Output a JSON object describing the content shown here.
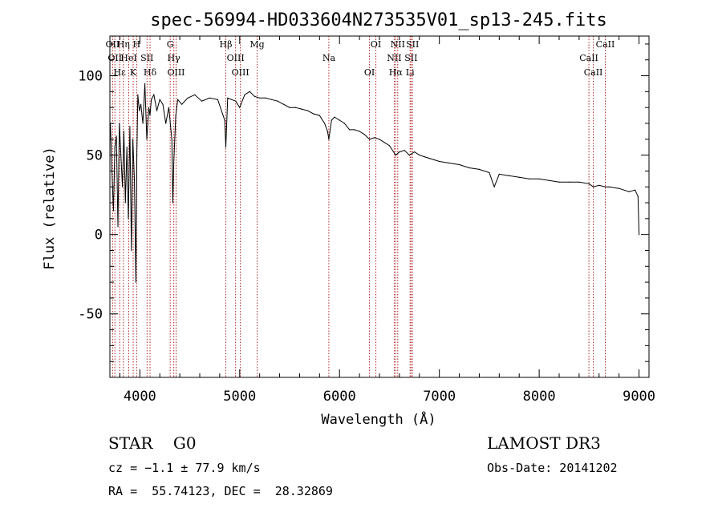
{
  "chart_data": {
    "type": "line",
    "title": "spec-56994-HD033604N273535V01_sp13-245.fits",
    "xlabel": "Wavelength (Å)",
    "ylabel": "Flux (relative)",
    "xlim": [
      3700,
      9100
    ],
    "ylim": [
      -90,
      125
    ],
    "grid": false,
    "legend": "none",
    "x_ticks": [
      {
        "value": 4000,
        "label": "4000"
      },
      {
        "value": 5000,
        "label": "5000"
      },
      {
        "value": 6000,
        "label": "6000"
      },
      {
        "value": 7000,
        "label": "7000"
      },
      {
        "value": 8000,
        "label": "8000"
      },
      {
        "value": 9000,
        "label": "9000"
      }
    ],
    "y_ticks": [
      {
        "value": 100,
        "label": "100"
      },
      {
        "value": 50,
        "label": "50"
      },
      {
        "value": 0,
        "label": "0"
      },
      {
        "value": -50,
        "label": "-50"
      }
    ],
    "series": [
      {
        "color": "#000000",
        "x": [
          3705,
          3720,
          3735,
          3750,
          3765,
          3780,
          3795,
          3810,
          3825,
          3840,
          3855,
          3870,
          3885,
          3900,
          3915,
          3930,
          3945,
          3960,
          3970,
          3980,
          3995,
          4010,
          4030,
          4050,
          4070,
          4090,
          4102,
          4115,
          4140,
          4170,
          4200,
          4230,
          4260,
          4290,
          4320,
          4330,
          4340,
          4360,
          4380,
          4420,
          4480,
          4550,
          4620,
          4700,
          4780,
          4850,
          4861,
          4880,
          4920,
          4960,
          5000,
          5050,
          5100,
          5150,
          5200,
          5260,
          5320,
          5380,
          5440,
          5500,
          5560,
          5620,
          5680,
          5740,
          5800,
          5850,
          5880,
          5893,
          5920,
          5950,
          6000,
          6050,
          6100,
          6150,
          6200,
          6250,
          6300,
          6350,
          6400,
          6450,
          6500,
          6563,
          6600,
          6650,
          6700,
          6750,
          6800,
          6850,
          6900,
          6950,
          7000,
          7100,
          7200,
          7300,
          7400,
          7500,
          7550,
          7600,
          7700,
          7800,
          7900,
          8000,
          8100,
          8200,
          8300,
          8400,
          8500,
          8542,
          8600,
          8662,
          8700,
          8800,
          8900,
          8960,
          8990,
          9000
        ],
        "values": [
          70,
          40,
          15,
          55,
          62,
          5,
          70,
          50,
          30,
          65,
          20,
          55,
          10,
          68,
          -10,
          60,
          35,
          -30,
          50,
          88,
          78,
          82,
          70,
          95,
          60,
          80,
          75,
          85,
          88,
          78,
          85,
          82,
          70,
          80,
          60,
          20,
          45,
          75,
          85,
          82,
          86,
          88,
          84,
          86,
          85,
          72,
          55,
          86,
          85,
          84,
          80,
          88,
          90,
          87,
          86,
          86,
          85,
          84,
          82,
          80,
          80,
          79,
          78,
          76,
          75,
          70,
          65,
          60,
          72,
          74,
          72,
          70,
          66,
          66,
          65,
          63,
          60,
          61,
          60,
          58,
          56,
          50,
          52,
          53,
          50,
          52,
          50,
          49,
          48,
          47,
          46,
          45,
          44,
          42,
          41,
          39,
          30,
          38,
          37,
          36,
          35,
          35,
          34,
          33,
          33,
          33,
          32,
          30,
          31,
          30,
          30,
          29,
          27,
          28,
          24,
          0
        ]
      }
    ],
    "line_markers": [
      {
        "wl": 3727,
        "label": "OII"
      },
      {
        "wl": 3750,
        "label": "OII"
      },
      {
        "wl": 3798,
        "label": "Hε"
      },
      {
        "wl": 3835,
        "label": "Hη"
      },
      {
        "wl": 3889,
        "label": "HeI"
      },
      {
        "wl": 3933,
        "label": "K"
      },
      {
        "wl": 3968,
        "label": "H"
      },
      {
        "wl": 4072,
        "label": "SII"
      },
      {
        "wl": 4102,
        "label": "Hδ"
      },
      {
        "wl": 4304,
        "label": "G"
      },
      {
        "wl": 4340,
        "label": "Hγ"
      },
      {
        "wl": 4363,
        "label": "OIII"
      },
      {
        "wl": 4861,
        "label": "Hβ"
      },
      {
        "wl": 4959,
        "label": "OIII"
      },
      {
        "wl": 5007,
        "label": "OIII"
      },
      {
        "wl": 5175,
        "label": "Mg"
      },
      {
        "wl": 5893,
        "label": "Na"
      },
      {
        "wl": 6300,
        "label": "OI"
      },
      {
        "wl": 6364,
        "label": "OI"
      },
      {
        "wl": 6548,
        "label": "NII"
      },
      {
        "wl": 6563,
        "label": "Hα"
      },
      {
        "wl": 6583,
        "label": "NII"
      },
      {
        "wl": 6716,
        "label": "SII"
      },
      {
        "wl": 6707,
        "label": "Li"
      },
      {
        "wl": 6731,
        "label": "SII"
      },
      {
        "wl": 8498,
        "label": "CaII"
      },
      {
        "wl": 8542,
        "label": "CaII"
      },
      {
        "wl": 8662,
        "label": "CaII"
      }
    ]
  },
  "info": {
    "left": {
      "class_line": "STAR    G0",
      "cz_line": "cz = −1.1 ± 77.9 km/s",
      "radec_line": "RA =  55.74123, DEC =  28.32869"
    },
    "right": {
      "survey_line": "LAMOST DR3",
      "obs_date_line": "Obs-Date: 20141202"
    }
  }
}
